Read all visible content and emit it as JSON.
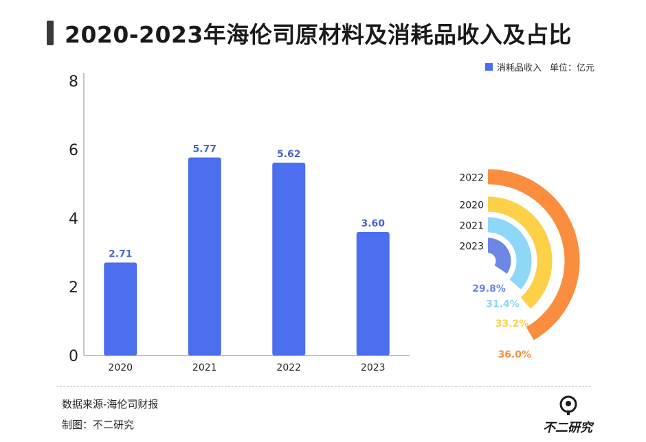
{
  "title": "2020-2023年海伦司原材料及消耗品收入及占比",
  "legend": {
    "series_label": "消耗品收入",
    "unit": "单位：亿元"
  },
  "footer": {
    "source": "数据来源-海伦司财报",
    "maker": "制图：不二研究"
  },
  "logo_text": "不二研究",
  "colors": {
    "bar": "#4c6fef",
    "label": "#4a66c9",
    "ring_2022": "#fb8e3e",
    "ring_2020": "#fcd148",
    "ring_2021": "#8ed7f6",
    "ring_2023": "#6d87e6"
  },
  "chart_data": [
    {
      "type": "bar",
      "categories": [
        "2020",
        "2021",
        "2022",
        "2023"
      ],
      "series": [
        {
          "name": "消耗品收入",
          "values": [
            2.71,
            5.77,
            5.62,
            3.6
          ]
        }
      ],
      "value_labels": [
        "2.71",
        "5.77",
        "5.62",
        "3.60"
      ],
      "ylim": [
        0,
        8
      ],
      "yticks": [
        "0",
        "2",
        "4",
        "6",
        "8"
      ],
      "grid": false
    },
    {
      "type": "radial_bar",
      "categories": [
        "2022",
        "2020",
        "2021",
        "2023"
      ],
      "values": [
        36.0,
        33.2,
        31.4,
        29.8
      ],
      "value_labels": [
        "36.0%",
        "33.2%",
        "31.4%",
        "29.8%"
      ],
      "color_keys": [
        "ring_2022",
        "ring_2020",
        "ring_2021",
        "ring_2023"
      ]
    }
  ]
}
